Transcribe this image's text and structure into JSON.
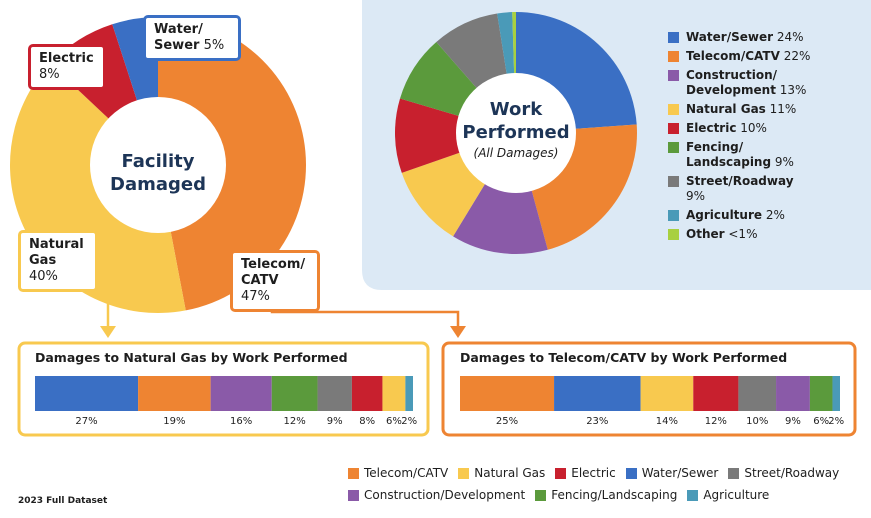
{
  "chart_data": [
    {
      "type": "donut",
      "title": "Facility Damaged",
      "categories": [
        "Telecom/CATV",
        "Natural Gas",
        "Electric",
        "Water/Sewer"
      ],
      "values": [
        47,
        40,
        8,
        5
      ],
      "value_labels": [
        "47%",
        "40%",
        "8%",
        "5%"
      ],
      "colors": [
        "#ee8432",
        "#f8c94f",
        "#c8202e",
        "#3a6fc4"
      ]
    },
    {
      "type": "donut",
      "title": "Work Performed",
      "subtitle": "(All Damages)",
      "categories": [
        "Water/Sewer",
        "Telecom/CATV",
        "Construction/Development",
        "Natural Gas",
        "Electric",
        "Fencing/Landscaping",
        "Street/Roadway",
        "Agriculture",
        "Other"
      ],
      "values": [
        24,
        22,
        13,
        11,
        10,
        9,
        9,
        2,
        0.5
      ],
      "value_labels": [
        "24%",
        "22%",
        "13%",
        "11%",
        "10%",
        "9%",
        "9%",
        "2%",
        "<1%"
      ],
      "colors": [
        "#3a6fc4",
        "#ee8432",
        "#8a5aa8",
        "#f8c94f",
        "#c8202e",
        "#5b9a3c",
        "#7a7a7a",
        "#4a9ab8",
        "#a8d040"
      ]
    },
    {
      "type": "stacked-bar",
      "title": "Damages to Natural Gas by Work Performed",
      "categories": [
        "Water/Sewer",
        "Telecom/CATV",
        "Construction/Development",
        "Fencing/Landscaping",
        "Street/Roadway",
        "Electric",
        "Natural Gas",
        "Agriculture"
      ],
      "values": [
        27,
        19,
        16,
        12,
        9,
        8,
        6,
        2
      ],
      "value_labels": [
        "27%",
        "19%",
        "16%",
        "12%",
        "9%",
        "8%",
        "6%",
        "2%"
      ]
    },
    {
      "type": "stacked-bar",
      "title": "Damages to Telecom/CATV by Work Performed",
      "categories": [
        "Telecom/CATV",
        "Water/Sewer",
        "Natural Gas",
        "Electric",
        "Street/Roadway",
        "Construction/Development",
        "Fencing/Landscaping",
        "Agriculture"
      ],
      "values": [
        25,
        23,
        14,
        12,
        10,
        9,
        6,
        2
      ],
      "value_labels": [
        "25%",
        "23%",
        "14%",
        "12%",
        "10%",
        "9%",
        "6%",
        "2%"
      ]
    }
  ],
  "legend": [
    {
      "name": "Telecom/CATV",
      "color": "#ee8432"
    },
    {
      "name": "Natural Gas",
      "color": "#f8c94f"
    },
    {
      "name": "Electric",
      "color": "#c8202e"
    },
    {
      "name": "Water/Sewer",
      "color": "#3a6fc4"
    },
    {
      "name": "Street/Roadway",
      "color": "#7a7a7a"
    },
    {
      "name": "Construction/Development",
      "color": "#8a5aa8"
    },
    {
      "name": "Fencing/Landscaping",
      "color": "#5b9a3c"
    },
    {
      "name": "Agriculture",
      "color": "#4a9ab8"
    }
  ],
  "footnote": "2023 Full Dataset"
}
